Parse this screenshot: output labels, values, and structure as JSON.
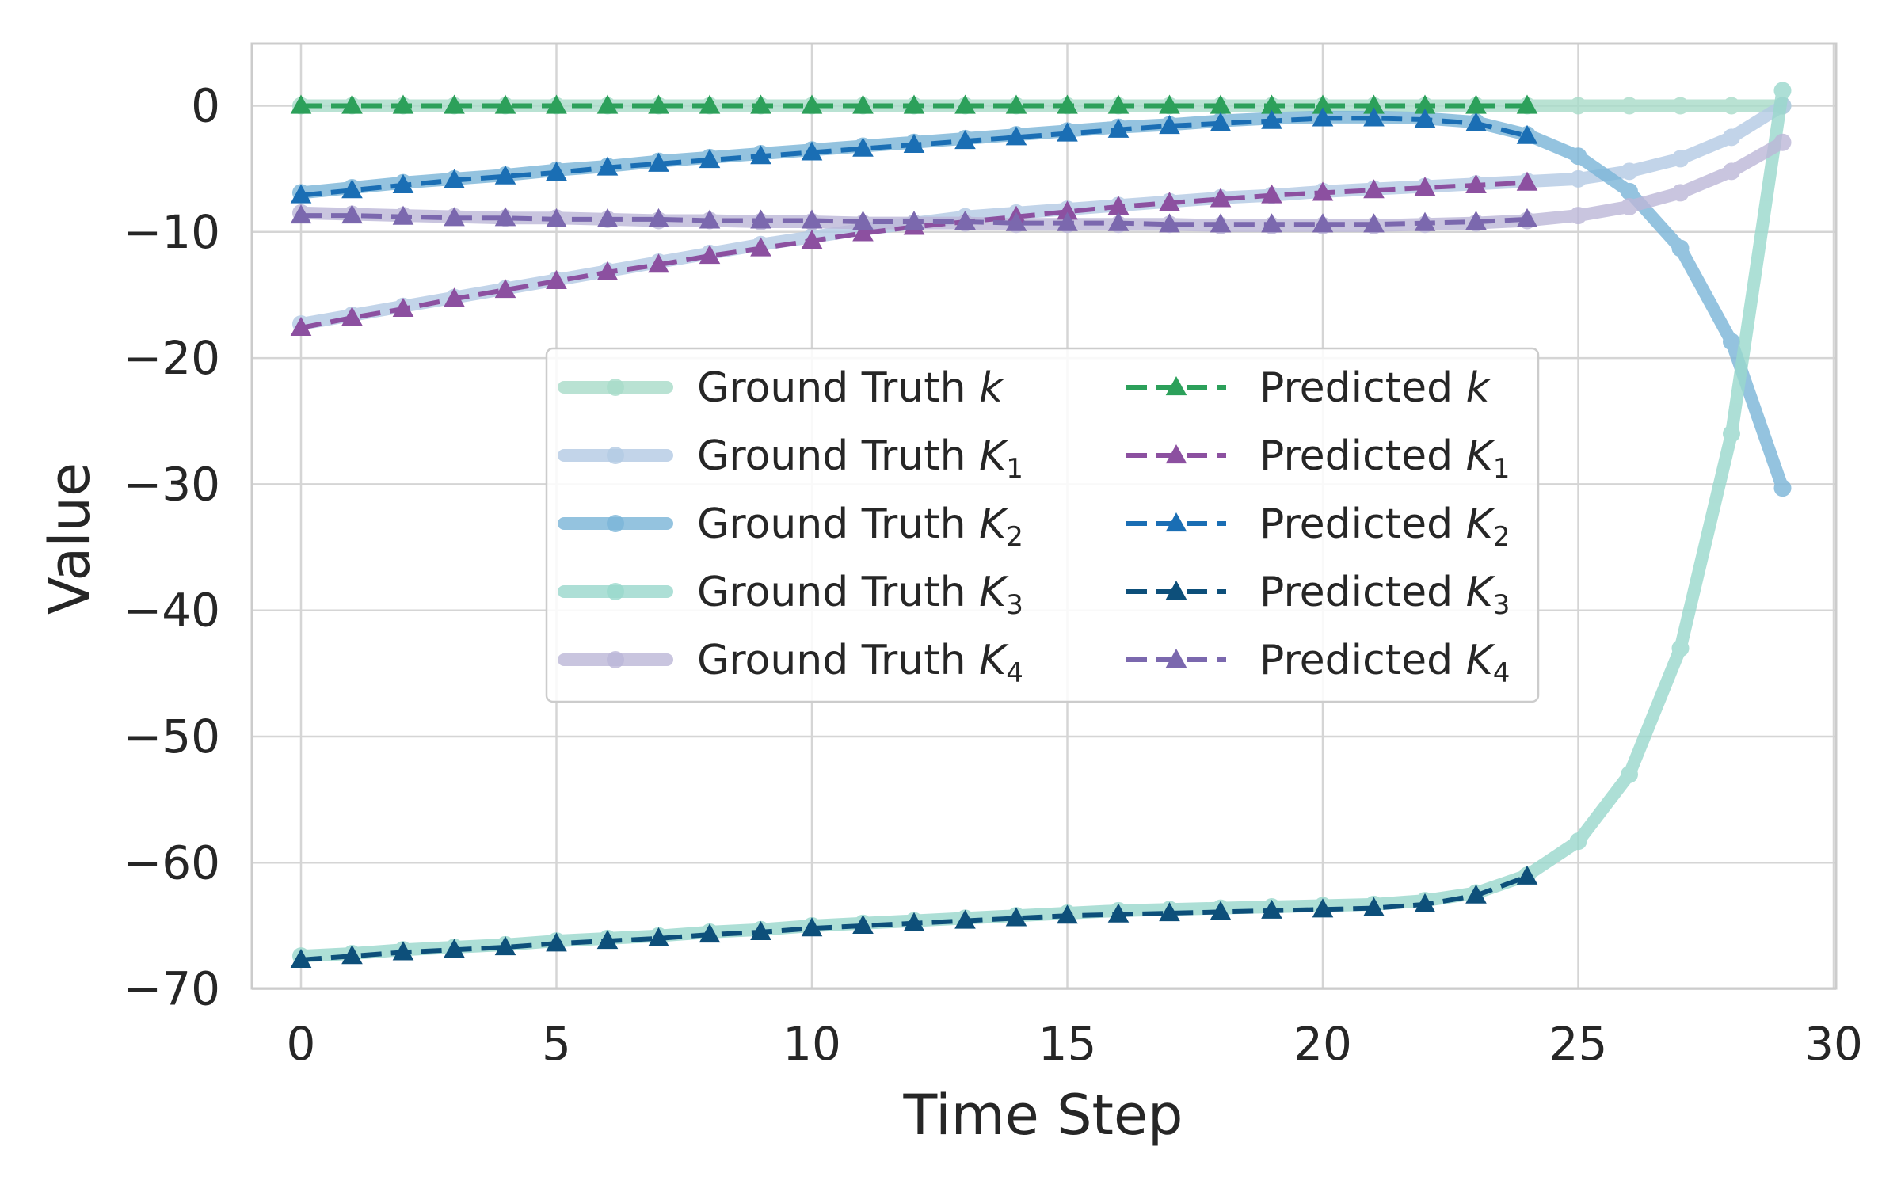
{
  "chart_data": {
    "type": "line",
    "title": "",
    "xlabel": "Time Step",
    "ylabel": "Value",
    "xlim": [
      -1,
      30
    ],
    "ylim": [
      -70,
      5
    ],
    "xticks": [
      0,
      5,
      10,
      15,
      20,
      25,
      30
    ],
    "yticks": [
      0,
      -10,
      -20,
      -30,
      -40,
      -50,
      -60,
      -70
    ],
    "xtick_labels": [
      "0",
      "5",
      "10",
      "15",
      "20",
      "25",
      "30"
    ],
    "ytick_labels": [
      "0",
      "−10",
      "−20",
      "−30",
      "−40",
      "−50",
      "−60",
      "−70"
    ],
    "grid": true,
    "legend": {
      "placement": "center",
      "columns": 2
    },
    "series": [
      {
        "name": "Ground Truth k",
        "prefix": "Ground Truth ",
        "symbol": "k",
        "subscript": "",
        "style": "ground_truth",
        "color": "#a8dcc9",
        "x": [
          0,
          1,
          2,
          3,
          4,
          5,
          6,
          7,
          8,
          9,
          10,
          11,
          12,
          13,
          14,
          15,
          16,
          17,
          18,
          19,
          20,
          21,
          22,
          23,
          24,
          25,
          26,
          27,
          28,
          29
        ],
        "values": [
          0,
          0,
          0,
          0,
          0,
          0,
          0,
          0,
          0,
          0,
          0,
          0,
          0,
          0,
          0,
          0,
          0,
          0,
          0,
          0,
          0,
          0,
          0,
          0,
          0,
          0,
          0,
          0,
          0,
          0
        ]
      },
      {
        "name": "Ground Truth K1",
        "prefix": "Ground Truth ",
        "symbol": "K",
        "subscript": "1",
        "style": "ground_truth",
        "color": "#b3cae4",
        "x": [
          0,
          1,
          2,
          3,
          4,
          5,
          6,
          7,
          8,
          9,
          10,
          11,
          12,
          13,
          14,
          15,
          16,
          17,
          18,
          19,
          20,
          21,
          22,
          23,
          24,
          25,
          26,
          27,
          28,
          29
        ],
        "values": [
          -17.3,
          -16.6,
          -15.9,
          -15.2,
          -14.5,
          -13.8,
          -13.1,
          -12.4,
          -11.7,
          -11.0,
          -10.4,
          -9.8,
          -9.3,
          -8.8,
          -8.5,
          -8.2,
          -7.9,
          -7.6,
          -7.3,
          -7.1,
          -6.8,
          -6.6,
          -6.4,
          -6.2,
          -6.0,
          -5.8,
          -5.2,
          -4.2,
          -2.5,
          0
        ]
      },
      {
        "name": "Ground Truth K2",
        "prefix": "Ground Truth ",
        "symbol": "K",
        "subscript": "2",
        "style": "ground_truth",
        "color": "#7ab5d8",
        "x": [
          0,
          1,
          2,
          3,
          4,
          5,
          6,
          7,
          8,
          9,
          10,
          11,
          12,
          13,
          14,
          15,
          16,
          17,
          18,
          19,
          20,
          21,
          22,
          23,
          24,
          25,
          26,
          27,
          28,
          29
        ],
        "values": [
          -6.9,
          -6.5,
          -6.1,
          -5.8,
          -5.5,
          -5.1,
          -4.8,
          -4.4,
          -4.1,
          -3.8,
          -3.5,
          -3.2,
          -2.9,
          -2.6,
          -2.3,
          -2.0,
          -1.7,
          -1.5,
          -1.2,
          -1.0,
          -0.9,
          -0.9,
          -1.0,
          -1.3,
          -2.3,
          -4.0,
          -6.8,
          -11.3,
          -18.7,
          -30.3
        ]
      },
      {
        "name": "Ground Truth K3",
        "prefix": "Ground Truth ",
        "symbol": "K",
        "subscript": "3",
        "style": "ground_truth",
        "color": "#99d8cc",
        "x": [
          0,
          1,
          2,
          3,
          4,
          5,
          6,
          7,
          8,
          9,
          10,
          11,
          12,
          13,
          14,
          15,
          16,
          17,
          18,
          19,
          20,
          21,
          22,
          23,
          24,
          25,
          26,
          27,
          28,
          29
        ],
        "values": [
          -67.4,
          -67.2,
          -66.9,
          -66.7,
          -66.5,
          -66.2,
          -66.0,
          -65.8,
          -65.5,
          -65.3,
          -65.0,
          -64.8,
          -64.6,
          -64.4,
          -64.2,
          -64.0,
          -63.8,
          -63.7,
          -63.6,
          -63.5,
          -63.4,
          -63.3,
          -63.0,
          -62.4,
          -61.0,
          -58.3,
          -53.0,
          -43.0,
          -26.0,
          1.2
        ]
      },
      {
        "name": "Ground Truth K4",
        "prefix": "Ground Truth ",
        "symbol": "K",
        "subscript": "4",
        "style": "ground_truth",
        "color": "#bcb7d8",
        "x": [
          0,
          1,
          2,
          3,
          4,
          5,
          6,
          7,
          8,
          9,
          10,
          11,
          12,
          13,
          14,
          15,
          16,
          17,
          18,
          19,
          20,
          21,
          22,
          23,
          24,
          25,
          26,
          27,
          28,
          29
        ],
        "values": [
          -8.5,
          -8.6,
          -8.7,
          -8.8,
          -8.9,
          -8.9,
          -9.0,
          -9.1,
          -9.1,
          -9.2,
          -9.2,
          -9.3,
          -9.3,
          -9.3,
          -9.4,
          -9.4,
          -9.4,
          -9.4,
          -9.5,
          -9.5,
          -9.5,
          -9.5,
          -9.4,
          -9.3,
          -9.1,
          -8.7,
          -8.0,
          -6.9,
          -5.2,
          -2.9
        ]
      },
      {
        "name": "Predicted k",
        "prefix": "Predicted ",
        "symbol": "k",
        "subscript": "",
        "style": "predicted",
        "color": "#2ca05a",
        "x": [
          0,
          1,
          2,
          3,
          4,
          5,
          6,
          7,
          8,
          9,
          10,
          11,
          12,
          13,
          14,
          15,
          16,
          17,
          18,
          19,
          20,
          21,
          22,
          23,
          24
        ],
        "values": [
          0,
          0,
          0,
          0,
          0,
          0,
          0,
          0,
          0,
          0,
          0,
          0,
          0,
          0,
          0,
          0,
          0,
          0,
          0,
          0,
          0,
          0,
          0,
          0,
          0
        ]
      },
      {
        "name": "Predicted K1",
        "prefix": "Predicted ",
        "symbol": "K",
        "subscript": "1",
        "style": "predicted",
        "color": "#8c50a0",
        "x": [
          0,
          1,
          2,
          3,
          4,
          5,
          6,
          7,
          8,
          9,
          10,
          11,
          12,
          13,
          14,
          15,
          16,
          17,
          18,
          19,
          20,
          21,
          22,
          23,
          24
        ],
        "values": [
          -17.6,
          -16.8,
          -16.1,
          -15.3,
          -14.6,
          -13.9,
          -13.2,
          -12.6,
          -11.9,
          -11.3,
          -10.7,
          -10.1,
          -9.6,
          -9.2,
          -8.8,
          -8.4,
          -8.0,
          -7.7,
          -7.4,
          -7.1,
          -6.9,
          -6.7,
          -6.5,
          -6.3,
          -6.1
        ]
      },
      {
        "name": "Predicted K2",
        "prefix": "Predicted ",
        "symbol": "K",
        "subscript": "2",
        "style": "predicted",
        "color": "#1a6eb4",
        "x": [
          0,
          1,
          2,
          3,
          4,
          5,
          6,
          7,
          8,
          9,
          10,
          11,
          12,
          13,
          14,
          15,
          16,
          17,
          18,
          19,
          20,
          21,
          22,
          23,
          24
        ],
        "values": [
          -7.1,
          -6.7,
          -6.3,
          -5.9,
          -5.6,
          -5.3,
          -4.9,
          -4.6,
          -4.3,
          -4.0,
          -3.7,
          -3.4,
          -3.1,
          -2.8,
          -2.5,
          -2.2,
          -1.9,
          -1.6,
          -1.4,
          -1.2,
          -1.0,
          -1.0,
          -1.1,
          -1.4,
          -2.4
        ]
      },
      {
        "name": "Predicted K3",
        "prefix": "Predicted ",
        "symbol": "K",
        "subscript": "3",
        "style": "predicted",
        "color": "#0d4f7a",
        "x": [
          0,
          1,
          2,
          3,
          4,
          5,
          6,
          7,
          8,
          9,
          10,
          11,
          12,
          13,
          14,
          15,
          16,
          17,
          18,
          19,
          20,
          21,
          22,
          23,
          24
        ],
        "values": [
          -67.7,
          -67.4,
          -67.1,
          -66.9,
          -66.7,
          -66.4,
          -66.2,
          -66.0,
          -65.7,
          -65.5,
          -65.2,
          -65.0,
          -64.8,
          -64.6,
          -64.4,
          -64.2,
          -64.1,
          -64.0,
          -63.9,
          -63.8,
          -63.7,
          -63.6,
          -63.3,
          -62.6,
          -61.1
        ]
      },
      {
        "name": "Predicted K4",
        "prefix": "Predicted ",
        "symbol": "K",
        "subscript": "4",
        "style": "predicted",
        "color": "#7b68ae",
        "x": [
          0,
          1,
          2,
          3,
          4,
          5,
          6,
          7,
          8,
          9,
          10,
          11,
          12,
          13,
          14,
          15,
          16,
          17,
          18,
          19,
          20,
          21,
          22,
          23,
          24
        ],
        "values": [
          -8.7,
          -8.7,
          -8.8,
          -8.9,
          -8.9,
          -9.0,
          -9.0,
          -9.0,
          -9.1,
          -9.1,
          -9.1,
          -9.2,
          -9.2,
          -9.2,
          -9.3,
          -9.3,
          -9.3,
          -9.4,
          -9.4,
          -9.4,
          -9.4,
          -9.4,
          -9.3,
          -9.2,
          -9.0
        ]
      }
    ]
  }
}
